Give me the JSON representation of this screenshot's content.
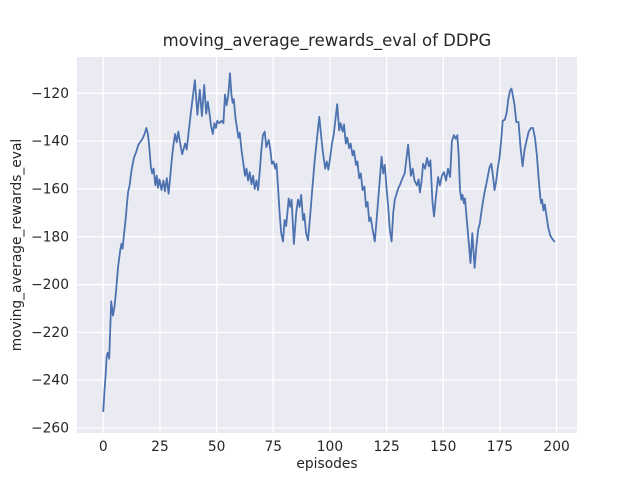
{
  "chart_data": {
    "type": "line",
    "title": "moving_average_rewards_eval of DDPG",
    "xlabel": "episodes",
    "ylabel": "moving_average_rewards_eval",
    "x_ticks": [
      0,
      25,
      50,
      75,
      100,
      125,
      150,
      175,
      200
    ],
    "y_ticks": [
      -120,
      -140,
      -160,
      -180,
      -200,
      -220,
      -240,
      -260
    ],
    "xlim": [
      -11.6,
      209.0
    ],
    "ylim": [
      -262.1,
      -104.8
    ],
    "grid": true,
    "legend_position": "none",
    "style": "seaborn-darkgrid",
    "line_color": "#4c72b0",
    "axes_background": "#eaeaf2",
    "grid_color": "#ffffff",
    "text_color": "#262626",
    "series": [
      {
        "name": "moving_average_rewards_eval",
        "points": [
          [
            0,
            -253
          ],
          [
            0.5,
            -245
          ],
          [
            1,
            -238
          ],
          [
            1.5,
            -230
          ],
          [
            2,
            -228.5
          ],
          [
            2.6,
            -231
          ],
          [
            3.5,
            -207
          ],
          [
            4.3,
            -213
          ],
          [
            5,
            -209
          ],
          [
            5.6,
            -203
          ],
          [
            6.5,
            -193
          ],
          [
            7.4,
            -186
          ],
          [
            8,
            -183
          ],
          [
            8.5,
            -185
          ],
          [
            9,
            -180
          ],
          [
            9.5,
            -176
          ],
          [
            10,
            -171
          ],
          [
            10.5,
            -165.5
          ],
          [
            11,
            -161
          ],
          [
            11.6,
            -158.5
          ],
          [
            12.5,
            -152
          ],
          [
            13.5,
            -147
          ],
          [
            14.5,
            -144.5
          ],
          [
            15.5,
            -141.5
          ],
          [
            17,
            -139.5
          ],
          [
            18,
            -137.5
          ],
          [
            19,
            -134.5
          ],
          [
            19.7,
            -137
          ],
          [
            20.2,
            -141.5
          ],
          [
            21,
            -151
          ],
          [
            21.6,
            -153.5
          ],
          [
            22.2,
            -151.5
          ],
          [
            23,
            -158.5
          ],
          [
            23.6,
            -154.5
          ],
          [
            24.2,
            -159.5
          ],
          [
            24.8,
            -156
          ],
          [
            25.7,
            -160.5
          ],
          [
            26.5,
            -156.5
          ],
          [
            27.2,
            -161
          ],
          [
            28,
            -155.5
          ],
          [
            28.8,
            -162
          ],
          [
            29.5,
            -155
          ],
          [
            30.2,
            -148
          ],
          [
            31,
            -141
          ],
          [
            31.7,
            -137
          ],
          [
            32.4,
            -140.5
          ],
          [
            33.1,
            -136
          ],
          [
            34,
            -141.5
          ],
          [
            34.8,
            -145.5
          ],
          [
            35.5,
            -143
          ],
          [
            36.1,
            -141
          ],
          [
            36.8,
            -143.5
          ],
          [
            37.5,
            -137.5
          ],
          [
            38.5,
            -129
          ],
          [
            39.5,
            -121.5
          ],
          [
            40.4,
            -114.5
          ],
          [
            41.5,
            -129
          ],
          [
            42.6,
            -118.5
          ],
          [
            43.5,
            -129.5
          ],
          [
            44.5,
            -116.5
          ],
          [
            45.4,
            -128.5
          ],
          [
            46.1,
            -123.5
          ],
          [
            46.8,
            -128
          ],
          [
            47.5,
            -133.5
          ],
          [
            48.3,
            -137
          ],
          [
            49,
            -132.5
          ],
          [
            49.7,
            -134.5
          ],
          [
            50.3,
            -131.5
          ],
          [
            51.2,
            -132.5
          ],
          [
            52.2,
            -131.5
          ],
          [
            53,
            -132.5
          ],
          [
            53.7,
            -120.5
          ],
          [
            54.4,
            -125
          ],
          [
            55.1,
            -121
          ],
          [
            55.9,
            -111.6
          ],
          [
            56.5,
            -120.5
          ],
          [
            57.1,
            -124
          ],
          [
            57.6,
            -122.5
          ],
          [
            58.3,
            -130
          ],
          [
            59,
            -134.5
          ],
          [
            59.6,
            -138.5
          ],
          [
            60.2,
            -136.5
          ],
          [
            61,
            -144
          ],
          [
            61.8,
            -149.5
          ],
          [
            62.5,
            -154.5
          ],
          [
            63.2,
            -151.5
          ],
          [
            63.9,
            -156.5
          ],
          [
            64.6,
            -153
          ],
          [
            65.4,
            -158
          ],
          [
            66.1,
            -154.5
          ],
          [
            66.8,
            -160
          ],
          [
            67.6,
            -156.5
          ],
          [
            68.3,
            -160.5
          ],
          [
            69,
            -153
          ],
          [
            69.7,
            -144
          ],
          [
            70.4,
            -137.5
          ],
          [
            71.2,
            -136
          ],
          [
            71.9,
            -142.5
          ],
          [
            73,
            -139.5
          ],
          [
            73.7,
            -143.5
          ],
          [
            74.4,
            -149.5
          ],
          [
            75.1,
            -148.5
          ],
          [
            75.8,
            -151.5
          ],
          [
            76.4,
            -149.5
          ],
          [
            77.1,
            -159
          ],
          [
            77.8,
            -170
          ],
          [
            78.5,
            -178.5
          ],
          [
            79.3,
            -182
          ],
          [
            80,
            -173
          ],
          [
            80.7,
            -175.5
          ],
          [
            81.8,
            -164
          ],
          [
            82.5,
            -167.5
          ],
          [
            83.1,
            -164.5
          ],
          [
            84.1,
            -183
          ],
          [
            85.1,
            -170
          ],
          [
            85.9,
            -164.5
          ],
          [
            86.6,
            -167.5
          ],
          [
            87.3,
            -162.5
          ],
          [
            88.1,
            -173
          ],
          [
            88.7,
            -170.5
          ],
          [
            89.5,
            -178.5
          ],
          [
            90.3,
            -181.5
          ],
          [
            91.2,
            -172
          ],
          [
            92.2,
            -160
          ],
          [
            93.2,
            -149
          ],
          [
            94.2,
            -139.5
          ],
          [
            95.3,
            -129.8
          ],
          [
            96.2,
            -138.5
          ],
          [
            96.8,
            -144
          ],
          [
            97.9,
            -151.5
          ],
          [
            98.6,
            -148.5
          ],
          [
            99.3,
            -152
          ],
          [
            100.2,
            -146
          ],
          [
            100.9,
            -141
          ],
          [
            101.7,
            -137
          ],
          [
            103.2,
            -124.5
          ],
          [
            104.1,
            -135.5
          ],
          [
            104.7,
            -132.5
          ],
          [
            105.6,
            -136
          ],
          [
            106.2,
            -133
          ],
          [
            107,
            -141
          ],
          [
            107.6,
            -138.5
          ],
          [
            108.5,
            -143
          ],
          [
            109.1,
            -141
          ],
          [
            110,
            -146
          ],
          [
            110.6,
            -144
          ],
          [
            111.5,
            -150
          ],
          [
            112.1,
            -148.5
          ],
          [
            112.9,
            -155.5
          ],
          [
            113.6,
            -153.5
          ],
          [
            114.4,
            -160.5
          ],
          [
            115.2,
            -159
          ],
          [
            115.9,
            -167.5
          ],
          [
            116.6,
            -165.5
          ],
          [
            117.3,
            -173.5
          ],
          [
            118,
            -172
          ],
          [
            118.8,
            -177
          ],
          [
            119.8,
            -182
          ],
          [
            120.6,
            -173
          ],
          [
            121.3,
            -164.5
          ],
          [
            122.8,
            -146.5
          ],
          [
            123.5,
            -153.5
          ],
          [
            124.2,
            -150
          ],
          [
            125,
            -160
          ],
          [
            125.7,
            -167.5
          ],
          [
            126.4,
            -177
          ],
          [
            127.2,
            -182
          ],
          [
            127.9,
            -170
          ],
          [
            128.6,
            -164.5
          ],
          [
            129.4,
            -162
          ],
          [
            130.1,
            -159.8
          ],
          [
            131,
            -158
          ],
          [
            131.8,
            -156
          ],
          [
            133,
            -153.5
          ],
          [
            134.5,
            -141.5
          ],
          [
            135.7,
            -154.5
          ],
          [
            136.5,
            -151.5
          ],
          [
            137.3,
            -156.5
          ],
          [
            138.4,
            -158.5
          ],
          [
            139.1,
            -156
          ],
          [
            139.7,
            -161.5
          ],
          [
            140.4,
            -157
          ],
          [
            141.1,
            -149.5
          ],
          [
            142,
            -151.5
          ],
          [
            142.8,
            -147
          ],
          [
            143.6,
            -150.5
          ],
          [
            144.3,
            -148
          ],
          [
            145.2,
            -165
          ],
          [
            145.9,
            -171.5
          ],
          [
            146.8,
            -163
          ],
          [
            147.7,
            -155
          ],
          [
            148.5,
            -158.5
          ],
          [
            149.4,
            -154.5
          ],
          [
            150.3,
            -153
          ],
          [
            151.2,
            -156.5
          ],
          [
            152.1,
            -151.5
          ],
          [
            153,
            -155
          ],
          [
            153.8,
            -140
          ],
          [
            154.7,
            -137.5
          ],
          [
            155.5,
            -139
          ],
          [
            156.2,
            -137.5
          ],
          [
            156.8,
            -146
          ],
          [
            157.4,
            -160.5
          ],
          [
            158,
            -164.5
          ],
          [
            158.5,
            -162.5
          ],
          [
            159.1,
            -166
          ],
          [
            159.6,
            -164
          ],
          [
            160.3,
            -172
          ],
          [
            161.2,
            -182
          ],
          [
            162,
            -191
          ],
          [
            162.8,
            -178.5
          ],
          [
            163.8,
            -193
          ],
          [
            164.6,
            -184
          ],
          [
            165.4,
            -177
          ],
          [
            166.1,
            -174.5
          ],
          [
            166.8,
            -169.5
          ],
          [
            167.5,
            -165.5
          ],
          [
            168.2,
            -161.5
          ],
          [
            169,
            -158
          ],
          [
            169.7,
            -154.5
          ],
          [
            170.4,
            -151
          ],
          [
            171.2,
            -149.5
          ],
          [
            172,
            -155
          ],
          [
            172.6,
            -160.5
          ],
          [
            173.3,
            -157
          ],
          [
            174,
            -151.5
          ],
          [
            174.8,
            -147
          ],
          [
            175.5,
            -140
          ],
          [
            176.2,
            -131.5
          ],
          [
            177.2,
            -131
          ],
          [
            178,
            -128
          ],
          [
            178.7,
            -122.5
          ],
          [
            179.4,
            -119
          ],
          [
            180.1,
            -118
          ],
          [
            180.8,
            -121.5
          ],
          [
            181.4,
            -124.5
          ],
          [
            182.2,
            -132
          ],
          [
            183.2,
            -132
          ],
          [
            184.1,
            -143
          ],
          [
            185,
            -150.5
          ],
          [
            185.9,
            -143.5
          ],
          [
            186.8,
            -139.5
          ],
          [
            187.7,
            -136
          ],
          [
            188.7,
            -134.5
          ],
          [
            189.6,
            -134.5
          ],
          [
            190.5,
            -139
          ],
          [
            191.3,
            -146
          ],
          [
            192.2,
            -157
          ],
          [
            192.8,
            -163.5
          ],
          [
            193.2,
            -166
          ],
          [
            193.6,
            -164.5
          ],
          [
            194.2,
            -169
          ],
          [
            194.8,
            -166.5
          ],
          [
            195.7,
            -172.5
          ],
          [
            196.4,
            -176.5
          ],
          [
            197.2,
            -179.5
          ],
          [
            198.2,
            -181
          ],
          [
            199,
            -182
          ]
        ]
      }
    ]
  }
}
